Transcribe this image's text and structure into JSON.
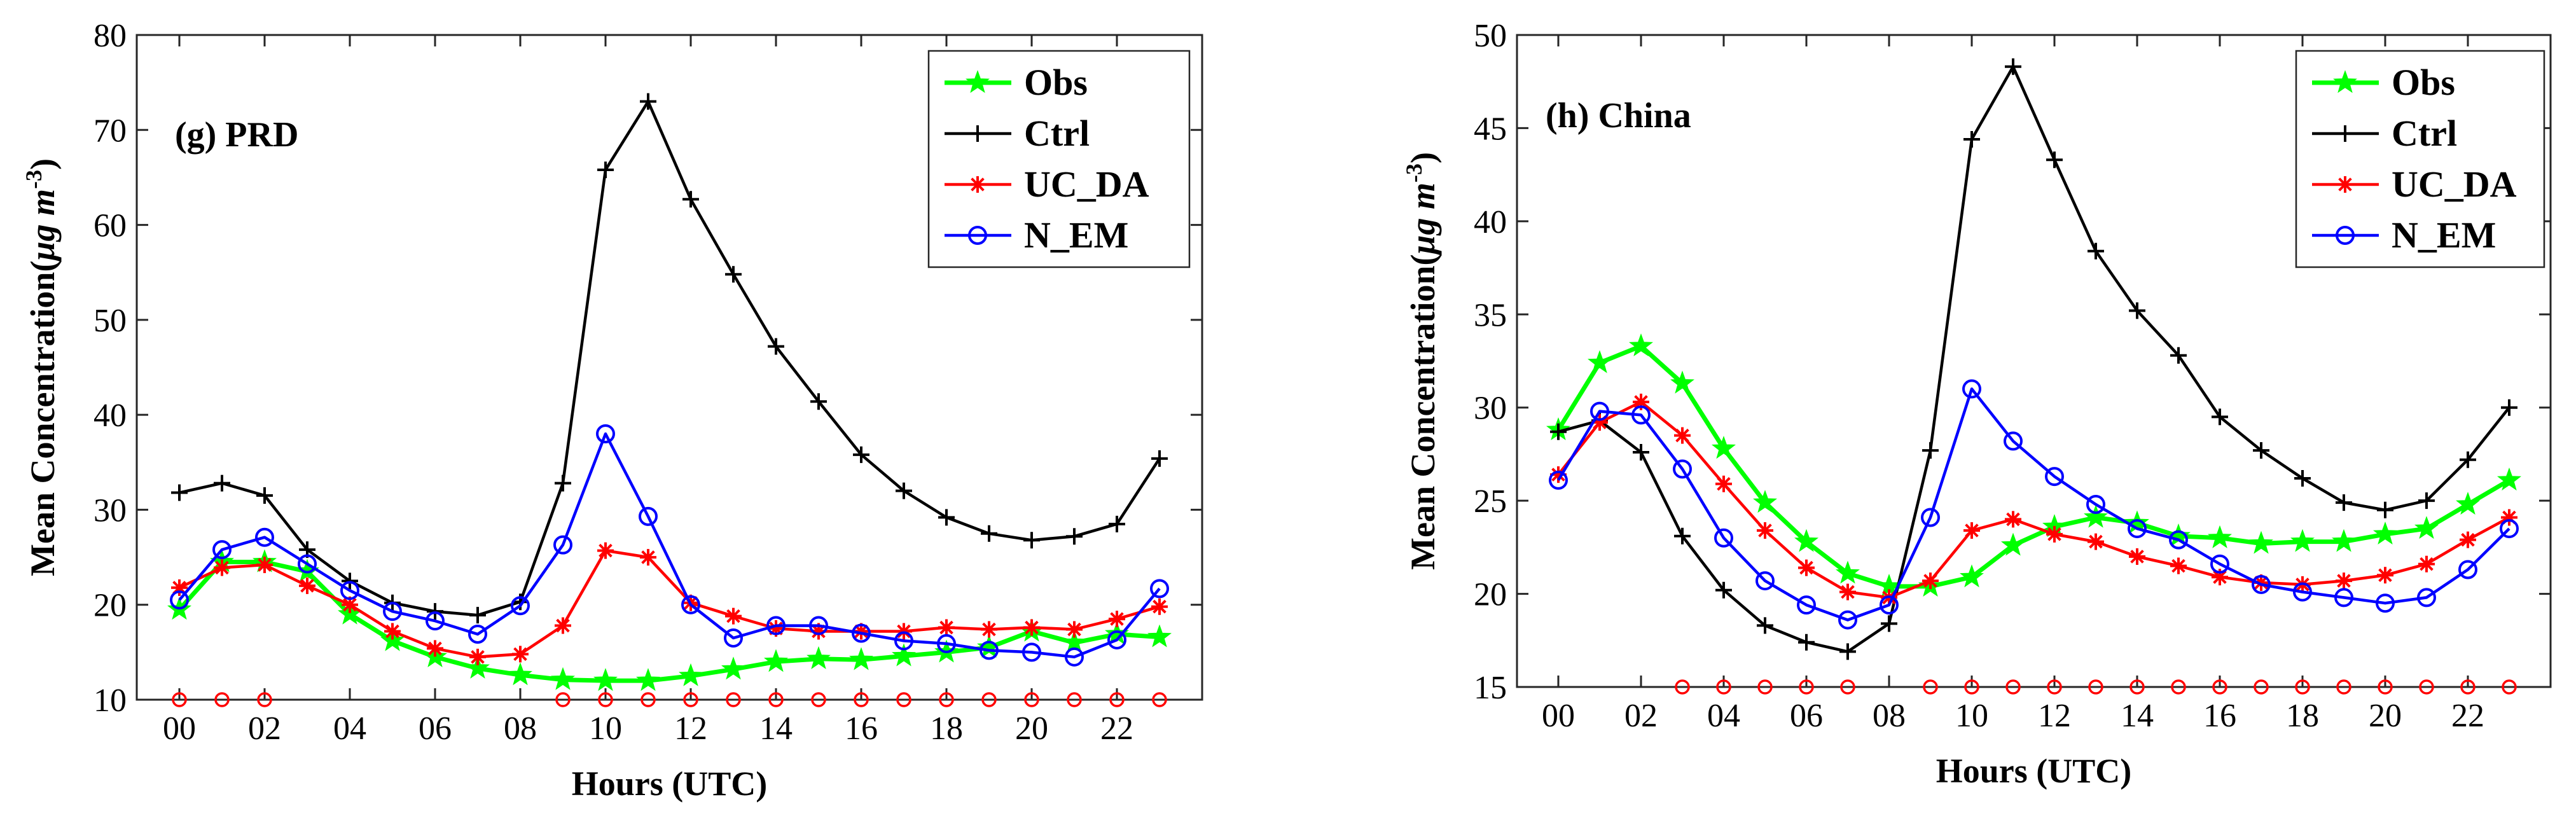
{
  "chart_data": [
    {
      "type": "line",
      "panel_label": "(g) PRD",
      "xlabel": "Hours (UTC)",
      "ylabel": "Mean Concentration(",
      "ylabel_unit": "μg m",
      "ylabel_exp": "-3",
      "ylabel_close": ")",
      "xlim": [
        -1,
        24
      ],
      "ylim": [
        10,
        80
      ],
      "xticks": [
        0,
        2,
        4,
        6,
        8,
        10,
        12,
        14,
        16,
        18,
        20,
        22
      ],
      "xtick_labels": [
        "00",
        "02",
        "04",
        "06",
        "08",
        "10",
        "12",
        "14",
        "16",
        "18",
        "20",
        "22"
      ],
      "yticks": [
        10,
        20,
        30,
        40,
        50,
        60,
        70,
        80
      ],
      "ytick_labels": [
        "10",
        "20",
        "30",
        "40",
        "50",
        "60",
        "70",
        "80"
      ],
      "x": [
        0,
        1,
        2,
        3,
        4,
        5,
        6,
        7,
        8,
        9,
        10,
        11,
        12,
        13,
        14,
        15,
        16,
        17,
        18,
        19,
        20,
        21,
        22,
        23
      ],
      "legend_position": "top-right",
      "series": [
        {
          "name": "Obs",
          "color": "#00ff00",
          "marker": "star",
          "values": [
            19.5,
            24.5,
            24.5,
            23.5,
            19.0,
            16.2,
            14.5,
            13.3,
            12.6,
            12.1,
            12.0,
            12.0,
            12.5,
            13.2,
            14.0,
            14.3,
            14.2,
            14.6,
            15.0,
            15.5,
            17.2,
            16.0,
            16.9,
            16.6
          ]
        },
        {
          "name": "Ctrl",
          "color": "#000000",
          "marker": "plus",
          "values": [
            31.8,
            32.8,
            31.5,
            25.8,
            22.5,
            20.2,
            19.3,
            18.9,
            20.3,
            32.8,
            65.8,
            73.0,
            62.7,
            54.8,
            47.2,
            41.4,
            35.8,
            32.0,
            29.2,
            27.5,
            26.8,
            27.2,
            28.5,
            35.4
          ]
        },
        {
          "name": "UC_DA",
          "color": "#ff0000",
          "marker": "asterisk",
          "values": [
            21.8,
            23.9,
            24.2,
            22.0,
            20.0,
            17.2,
            15.4,
            14.5,
            14.8,
            17.8,
            25.7,
            25.0,
            20.2,
            18.8,
            17.5,
            17.2,
            17.2,
            17.2,
            17.6,
            17.4,
            17.6,
            17.4,
            18.5,
            19.8
          ]
        },
        {
          "name": "N_EM",
          "color": "#0000ff",
          "marker": "circle",
          "values": [
            20.5,
            25.8,
            27.1,
            24.3,
            21.5,
            19.3,
            18.3,
            16.9,
            19.9,
            26.3,
            38.0,
            29.3,
            20.0,
            16.5,
            17.8,
            17.8,
            17.0,
            16.2,
            15.9,
            15.2,
            15.0,
            14.5,
            16.3,
            21.7
          ]
        }
      ],
      "significance_marks": {
        "color": "#ff0000",
        "y": 10,
        "x": [
          0,
          1,
          2,
          9,
          10,
          11,
          12,
          13,
          14,
          15,
          16,
          17,
          18,
          19,
          20,
          21,
          22,
          23
        ]
      }
    },
    {
      "type": "line",
      "panel_label": "(h) China",
      "xlabel": "Hours (UTC)",
      "ylabel": "Mean Concentration(",
      "ylabel_unit": "μg m",
      "ylabel_exp": "-3",
      "ylabel_close": ")",
      "xlim": [
        -1,
        24
      ],
      "ylim": [
        15,
        50
      ],
      "xticks": [
        0,
        2,
        4,
        6,
        8,
        10,
        12,
        14,
        16,
        18,
        20,
        22
      ],
      "xtick_labels": [
        "00",
        "02",
        "04",
        "06",
        "08",
        "10",
        "12",
        "14",
        "16",
        "18",
        "20",
        "22"
      ],
      "yticks": [
        15,
        20,
        25,
        30,
        35,
        40,
        45,
        50
      ],
      "ytick_labels": [
        "15",
        "20",
        "25",
        "30",
        "35",
        "40",
        "45",
        "50"
      ],
      "x": [
        0,
        1,
        2,
        3,
        4,
        5,
        6,
        7,
        8,
        9,
        10,
        11,
        12,
        13,
        14,
        15,
        16,
        17,
        18,
        19,
        20,
        21,
        22,
        23
      ],
      "legend_position": "top-right",
      "series": [
        {
          "name": "Obs",
          "color": "#00ff00",
          "marker": "star",
          "values": [
            28.8,
            32.4,
            33.3,
            31.3,
            27.8,
            24.9,
            22.8,
            21.1,
            20.4,
            20.4,
            20.9,
            22.6,
            23.6,
            24.1,
            23.8,
            23.1,
            23.0,
            22.7,
            22.8,
            22.8,
            23.2,
            23.5,
            24.8,
            26.1
          ]
        },
        {
          "name": "Ctrl",
          "color": "#000000",
          "marker": "plus",
          "values": [
            28.7,
            29.3,
            27.6,
            23.1,
            20.2,
            18.3,
            17.4,
            16.9,
            18.4,
            27.7,
            44.4,
            48.3,
            43.3,
            38.4,
            35.2,
            32.8,
            29.5,
            27.7,
            26.2,
            24.9,
            24.5,
            25.0,
            27.2,
            30.0
          ]
        },
        {
          "name": "UC_DA",
          "color": "#ff0000",
          "marker": "asterisk",
          "values": [
            26.4,
            29.2,
            30.3,
            28.5,
            25.9,
            23.4,
            21.4,
            20.1,
            19.8,
            20.7,
            23.4,
            24.0,
            23.2,
            22.8,
            22.0,
            21.5,
            20.9,
            20.6,
            20.5,
            20.7,
            21.0,
            21.6,
            22.9,
            24.1
          ]
        },
        {
          "name": "N_EM",
          "color": "#0000ff",
          "marker": "circle",
          "values": [
            26.1,
            29.8,
            29.6,
            26.7,
            23.0,
            20.7,
            19.4,
            18.6,
            19.4,
            24.1,
            31.0,
            28.2,
            26.3,
            24.8,
            23.5,
            22.9,
            21.6,
            20.5,
            20.1,
            19.8,
            19.5,
            19.8,
            21.3,
            23.5
          ]
        }
      ],
      "significance_marks": {
        "color": "#ff0000",
        "y": 15,
        "x": [
          3,
          4,
          5,
          6,
          7,
          9,
          10,
          11,
          12,
          13,
          14,
          15,
          16,
          17,
          18,
          19,
          20,
          21,
          22,
          23
        ]
      }
    }
  ]
}
